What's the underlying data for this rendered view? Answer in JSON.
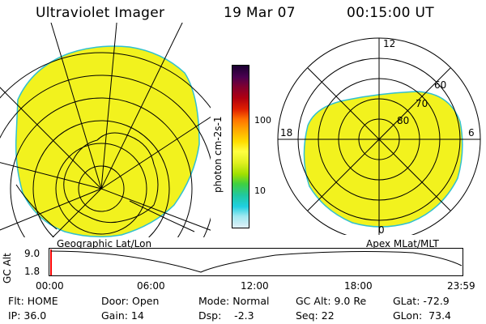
{
  "header": {
    "title": "Ultraviolet Imager",
    "date": "19 Mar 07",
    "time": "00:15:00 UT"
  },
  "colorbar": {
    "unit_label": "photon cm-2s-1",
    "ticks": [
      "100",
      "10"
    ],
    "colors": [
      "#1a0030",
      "#4a0050",
      "#800030",
      "#b00010",
      "#e02000",
      "#ff7000",
      "#ffaa00",
      "#ffdd00",
      "#ffff40",
      "#e0f020",
      "#a0e000",
      "#40d040",
      "#20c8a0",
      "#20d0e0",
      "#a0e8f0",
      "#e0f0f8"
    ]
  },
  "left_map": {
    "caption": "Geographic Lat/Lon",
    "fill_color": "#f2f21e"
  },
  "right_map": {
    "caption": "Apex MLat/MLT",
    "fill_color": "#f2f21e",
    "lat_labels": [
      "60",
      "70",
      "80"
    ],
    "mlt_labels": {
      "top": "12",
      "right": "6",
      "left": "18",
      "bottom": "0"
    }
  },
  "timeline": {
    "axis_label": "GC Alt",
    "y_ticks": [
      "9.0",
      "1.8"
    ],
    "x_ticks": [
      "00:00",
      "06:00",
      "12:00",
      "18:00",
      "23:59"
    ],
    "marker_color": "#ff0000"
  },
  "status": {
    "flt": "Flt: HOME",
    "ip": "IP: 36.0",
    "door": "Door: Open",
    "gain": "Gain: 14",
    "mode": "Mode: Normal",
    "dsp": "Dsp:    -2.3",
    "gcalt": "GC Alt: 9.0 Re",
    "seq": "Seq: 22",
    "glat": "GLat: -72.9",
    "glon": "GLon:  73.4"
  }
}
